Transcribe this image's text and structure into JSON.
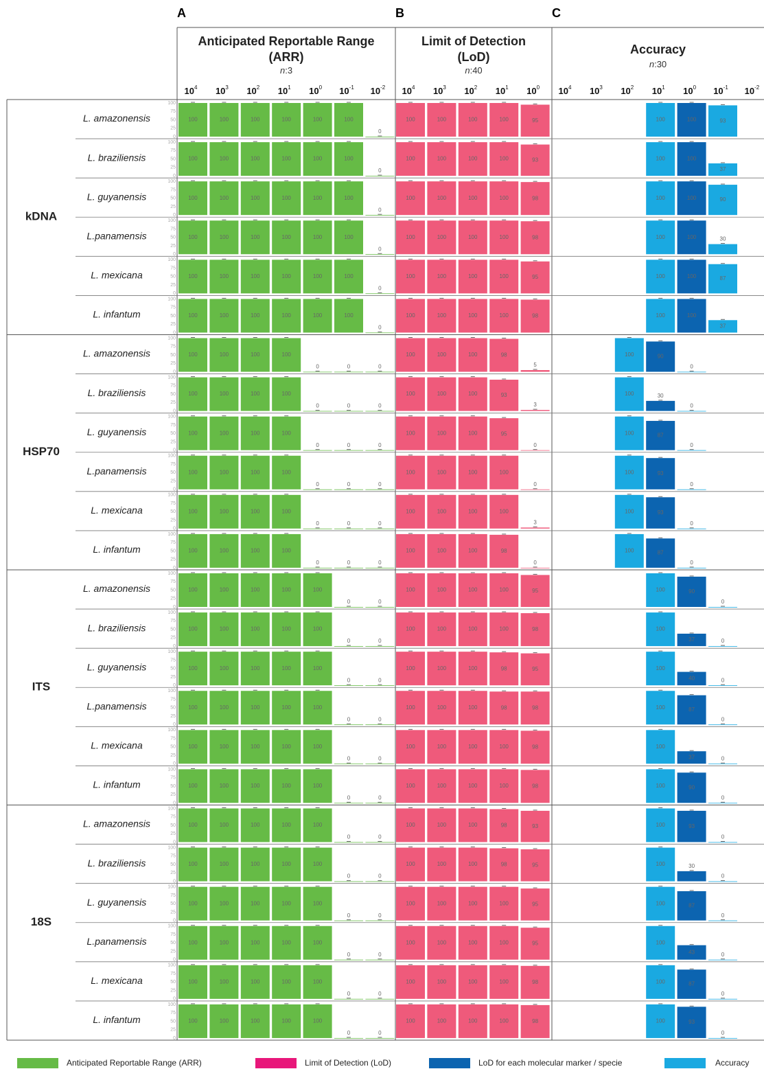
{
  "chart_data": {
    "type": "bar",
    "panels": [
      {
        "letter": "A",
        "title_lines": [
          "Anticipated Reportable Range",
          "(ARR)"
        ],
        "sample_size": {
          "symbol": "n",
          "separator": ":",
          "value": 3
        },
        "color": "#66bb46"
      },
      {
        "letter": "B",
        "title_lines": [
          "Limit of Detection",
          "(LoD)"
        ],
        "sample_size": {
          "symbol": "n",
          "separator": ":",
          "value": 40
        },
        "color": "#ef5a7b"
      },
      {
        "letter": "C",
        "title_lines": [
          "Accuracy"
        ],
        "sample_size": {
          "symbol": "n",
          "separator": ":",
          "value": 30
        },
        "color": "#1aa9e1",
        "marker_color": "#0c64b0"
      }
    ],
    "columns": [
      {
        "base": "10",
        "exponent": "4"
      },
      {
        "base": "10",
        "exponent": "3"
      },
      {
        "base": "10",
        "exponent": "2"
      },
      {
        "base": "10",
        "exponent": "1"
      },
      {
        "base": "10",
        "exponent": "0"
      },
      {
        "base": "10",
        "exponent": "-1"
      },
      {
        "base": "10",
        "exponent": "-2"
      }
    ],
    "ylim": [
      0,
      100
    ],
    "yticks": [
      0,
      25,
      50,
      75,
      100
    ],
    "groups": [
      {
        "marker": "kDNA",
        "rows": [
          {
            "species": "L. amazonensis",
            "arr": [
              100,
              100,
              100,
              100,
              100,
              100,
              0
            ],
            "lod": [
              100,
              100,
              100,
              100,
              95
            ],
            "accuracy": [
              null,
              null,
              null,
              100,
              null,
              93,
              null
            ],
            "marker_lod": [
              null,
              null,
              null,
              null,
              100,
              null,
              null
            ]
          },
          {
            "species": "L. braziliensis",
            "arr": [
              100,
              100,
              100,
              100,
              100,
              100,
              0
            ],
            "lod": [
              100,
              100,
              100,
              100,
              93
            ],
            "accuracy": [
              null,
              null,
              null,
              100,
              null,
              37,
              null
            ],
            "marker_lod": [
              null,
              null,
              null,
              null,
              100,
              null,
              null
            ]
          },
          {
            "species": "L. guyanensis",
            "arr": [
              100,
              100,
              100,
              100,
              100,
              100,
              0
            ],
            "lod": [
              100,
              100,
              100,
              100,
              98
            ],
            "accuracy": [
              null,
              null,
              null,
              100,
              null,
              90,
              null
            ],
            "marker_lod": [
              null,
              null,
              null,
              null,
              100,
              null,
              null
            ]
          },
          {
            "species": "L.panamensis",
            "arr": [
              100,
              100,
              100,
              100,
              100,
              100,
              0
            ],
            "lod": [
              100,
              100,
              100,
              100,
              98
            ],
            "accuracy": [
              null,
              null,
              null,
              100,
              null,
              30,
              null
            ],
            "marker_lod": [
              null,
              null,
              null,
              null,
              100,
              null,
              null
            ]
          },
          {
            "species": "L. mexicana",
            "arr": [
              100,
              100,
              100,
              100,
              100,
              100,
              0
            ],
            "lod": [
              100,
              100,
              100,
              100,
              95
            ],
            "accuracy": [
              null,
              null,
              null,
              100,
              null,
              87,
              null
            ],
            "marker_lod": [
              null,
              null,
              null,
              null,
              100,
              null,
              null
            ]
          },
          {
            "species": "L. infantum",
            "arr": [
              100,
              100,
              100,
              100,
              100,
              100,
              0
            ],
            "lod": [
              100,
              100,
              100,
              100,
              98
            ],
            "accuracy": [
              null,
              null,
              null,
              100,
              null,
              37,
              null
            ],
            "marker_lod": [
              null,
              null,
              null,
              null,
              100,
              null,
              null
            ]
          }
        ]
      },
      {
        "marker": "HSP70",
        "rows": [
          {
            "species": "L. amazonensis",
            "arr": [
              100,
              100,
              100,
              100,
              0,
              0,
              0
            ],
            "lod": [
              100,
              100,
              100,
              98,
              5
            ],
            "accuracy": [
              null,
              null,
              100,
              null,
              0,
              null,
              null
            ],
            "marker_lod": [
              null,
              null,
              null,
              90,
              null,
              null,
              null
            ]
          },
          {
            "species": "L. braziliensis",
            "arr": [
              100,
              100,
              100,
              100,
              0,
              0,
              0
            ],
            "lod": [
              100,
              100,
              100,
              93,
              3
            ],
            "accuracy": [
              null,
              null,
              100,
              null,
              0,
              null,
              null
            ],
            "marker_lod": [
              null,
              null,
              null,
              30,
              null,
              null,
              null
            ]
          },
          {
            "species": "L. guyanensis",
            "arr": [
              100,
              100,
              100,
              100,
              0,
              0,
              0
            ],
            "lod": [
              100,
              100,
              100,
              95,
              0
            ],
            "accuracy": [
              null,
              null,
              100,
              null,
              0,
              null,
              null
            ],
            "marker_lod": [
              null,
              null,
              null,
              87,
              null,
              null,
              null
            ]
          },
          {
            "species": "L.panamensis",
            "arr": [
              100,
              100,
              100,
              100,
              0,
              0,
              0
            ],
            "lod": [
              100,
              100,
              100,
              100,
              0
            ],
            "accuracy": [
              null,
              null,
              100,
              null,
              0,
              null,
              null
            ],
            "marker_lod": [
              null,
              null,
              null,
              93,
              null,
              null,
              null
            ]
          },
          {
            "species": "L. mexicana",
            "arr": [
              100,
              100,
              100,
              100,
              0,
              0,
              0
            ],
            "lod": [
              100,
              100,
              100,
              100,
              3
            ],
            "accuracy": [
              null,
              null,
              100,
              null,
              0,
              null,
              null
            ],
            "marker_lod": [
              null,
              null,
              null,
              93,
              null,
              null,
              null
            ]
          },
          {
            "species": "L. infantum",
            "arr": [
              100,
              100,
              100,
              100,
              0,
              0,
              0
            ],
            "lod": [
              100,
              100,
              100,
              98,
              0
            ],
            "accuracy": [
              null,
              null,
              100,
              null,
              0,
              null,
              null
            ],
            "marker_lod": [
              null,
              null,
              null,
              87,
              null,
              null,
              null
            ]
          }
        ]
      },
      {
        "marker": "ITS",
        "rows": [
          {
            "species": "L. amazonensis",
            "arr": [
              100,
              100,
              100,
              100,
              100,
              0,
              0
            ],
            "lod": [
              100,
              100,
              100,
              100,
              95
            ],
            "accuracy": [
              null,
              null,
              null,
              100,
              null,
              0,
              null
            ],
            "marker_lod": [
              null,
              null,
              null,
              null,
              90,
              null,
              null
            ]
          },
          {
            "species": "L. braziliensis",
            "arr": [
              100,
              100,
              100,
              100,
              100,
              0,
              0
            ],
            "lod": [
              100,
              100,
              100,
              100,
              98
            ],
            "accuracy": [
              null,
              null,
              null,
              100,
              null,
              0,
              null
            ],
            "marker_lod": [
              null,
              null,
              null,
              null,
              37,
              null,
              null
            ]
          },
          {
            "species": "L. guyanensis",
            "arr": [
              100,
              100,
              100,
              100,
              100,
              0,
              0
            ],
            "lod": [
              100,
              100,
              100,
              98,
              95
            ],
            "accuracy": [
              null,
              null,
              null,
              100,
              null,
              0,
              null
            ],
            "marker_lod": [
              null,
              null,
              null,
              null,
              40,
              null,
              null
            ]
          },
          {
            "species": "L.panamensis",
            "arr": [
              100,
              100,
              100,
              100,
              100,
              0,
              0
            ],
            "lod": [
              100,
              100,
              100,
              98,
              98
            ],
            "accuracy": [
              null,
              null,
              null,
              100,
              null,
              0,
              null
            ],
            "marker_lod": [
              null,
              null,
              null,
              null,
              87,
              null,
              null
            ]
          },
          {
            "species": "L. mexicana",
            "arr": [
              100,
              100,
              100,
              100,
              100,
              0,
              0
            ],
            "lod": [
              100,
              100,
              100,
              100,
              98
            ],
            "accuracy": [
              null,
              null,
              null,
              100,
              null,
              0,
              null
            ],
            "marker_lod": [
              null,
              null,
              null,
              null,
              37,
              null,
              null
            ]
          },
          {
            "species": "L. infantum",
            "arr": [
              100,
              100,
              100,
              100,
              100,
              0,
              0
            ],
            "lod": [
              100,
              100,
              100,
              100,
              98
            ],
            "accuracy": [
              null,
              null,
              null,
              100,
              null,
              0,
              null
            ],
            "marker_lod": [
              null,
              null,
              null,
              null,
              90,
              null,
              null
            ]
          }
        ]
      },
      {
        "marker": "18S",
        "rows": [
          {
            "species": "L. amazonensis",
            "arr": [
              100,
              100,
              100,
              100,
              100,
              0,
              0
            ],
            "lod": [
              100,
              100,
              100,
              98,
              93
            ],
            "accuracy": [
              null,
              null,
              null,
              100,
              null,
              0,
              null
            ],
            "marker_lod": [
              null,
              null,
              null,
              null,
              93,
              null,
              null
            ]
          },
          {
            "species": "L. braziliensis",
            "arr": [
              100,
              100,
              100,
              100,
              100,
              0,
              0
            ],
            "lod": [
              100,
              100,
              100,
              98,
              95
            ],
            "accuracy": [
              null,
              null,
              null,
              100,
              null,
              0,
              null
            ],
            "marker_lod": [
              null,
              null,
              null,
              null,
              30,
              null,
              null
            ]
          },
          {
            "species": "L. guyanensis",
            "arr": [
              100,
              100,
              100,
              100,
              100,
              0,
              0
            ],
            "lod": [
              100,
              100,
              100,
              100,
              95
            ],
            "accuracy": [
              null,
              null,
              null,
              100,
              null,
              0,
              null
            ],
            "marker_lod": [
              null,
              null,
              null,
              null,
              87,
              null,
              null
            ]
          },
          {
            "species": "L.panamensis",
            "arr": [
              100,
              100,
              100,
              100,
              100,
              0,
              0
            ],
            "lod": [
              100,
              100,
              100,
              100,
              95
            ],
            "accuracy": [
              null,
              null,
              null,
              100,
              null,
              0,
              null
            ],
            "marker_lod": [
              null,
              null,
              null,
              null,
              43,
              null,
              null
            ]
          },
          {
            "species": "L. mexicana",
            "arr": [
              100,
              100,
              100,
              100,
              100,
              0,
              0
            ],
            "lod": [
              100,
              100,
              100,
              100,
              98
            ],
            "accuracy": [
              null,
              null,
              null,
              100,
              null,
              0,
              null
            ],
            "marker_lod": [
              null,
              null,
              null,
              null,
              87,
              null,
              null
            ]
          },
          {
            "species": "L. infantum",
            "arr": [
              100,
              100,
              100,
              100,
              100,
              0,
              0
            ],
            "lod": [
              100,
              100,
              100,
              100,
              98
            ],
            "accuracy": [
              null,
              null,
              null,
              100,
              null,
              0,
              null
            ],
            "marker_lod": [
              null,
              null,
              null,
              null,
              93,
              null,
              null
            ]
          }
        ]
      }
    ],
    "legend": [
      {
        "name": "Anticipated Reportable Range (ARR)",
        "color": "#66bb46"
      },
      {
        "name": "Limit of Detection (LoD)",
        "color": "#e8177a"
      },
      {
        "name": "LoD for each molecular marker / specie",
        "color": "#0c64b0"
      },
      {
        "name": "Accuracy",
        "color": "#1aa9e1"
      }
    ]
  }
}
